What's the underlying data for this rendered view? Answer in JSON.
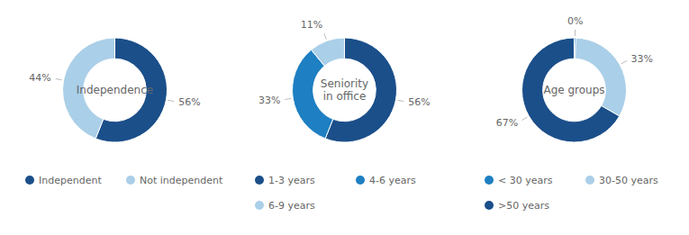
{
  "chart_data": [
    {
      "type": "pie",
      "title": "Independence",
      "categories": [
        "Independent",
        "Not independent"
      ],
      "values": [
        56,
        44
      ],
      "value_labels": [
        "56%",
        "44%"
      ],
      "colors": [
        "#1b4f8a",
        "#aacfe8"
      ],
      "data_labels": true,
      "legend": "bottom"
    },
    {
      "type": "pie",
      "title": "Seniority\nin office",
      "categories": [
        "1-3 years",
        "4-6 years",
        "6-9 years"
      ],
      "values": [
        56,
        33,
        11
      ],
      "value_labels": [
        "56%",
        "33%",
        "11%"
      ],
      "colors": [
        "#1b4f8a",
        "#1e7fc2",
        "#aacfe8"
      ],
      "data_labels": true,
      "legend": "bottom"
    },
    {
      "type": "pie",
      "title": "Age groups",
      "categories": [
        "< 30 years",
        "30-50 years",
        ">50 years"
      ],
      "values": [
        0.5,
        33,
        67
      ],
      "value_labels": [
        "0%",
        "33%",
        "67%"
      ],
      "colors": [
        "#1e7fc2",
        "#aacfe8",
        "#1b4f8a"
      ],
      "data_labels": true,
      "legend": "bottom"
    }
  ]
}
